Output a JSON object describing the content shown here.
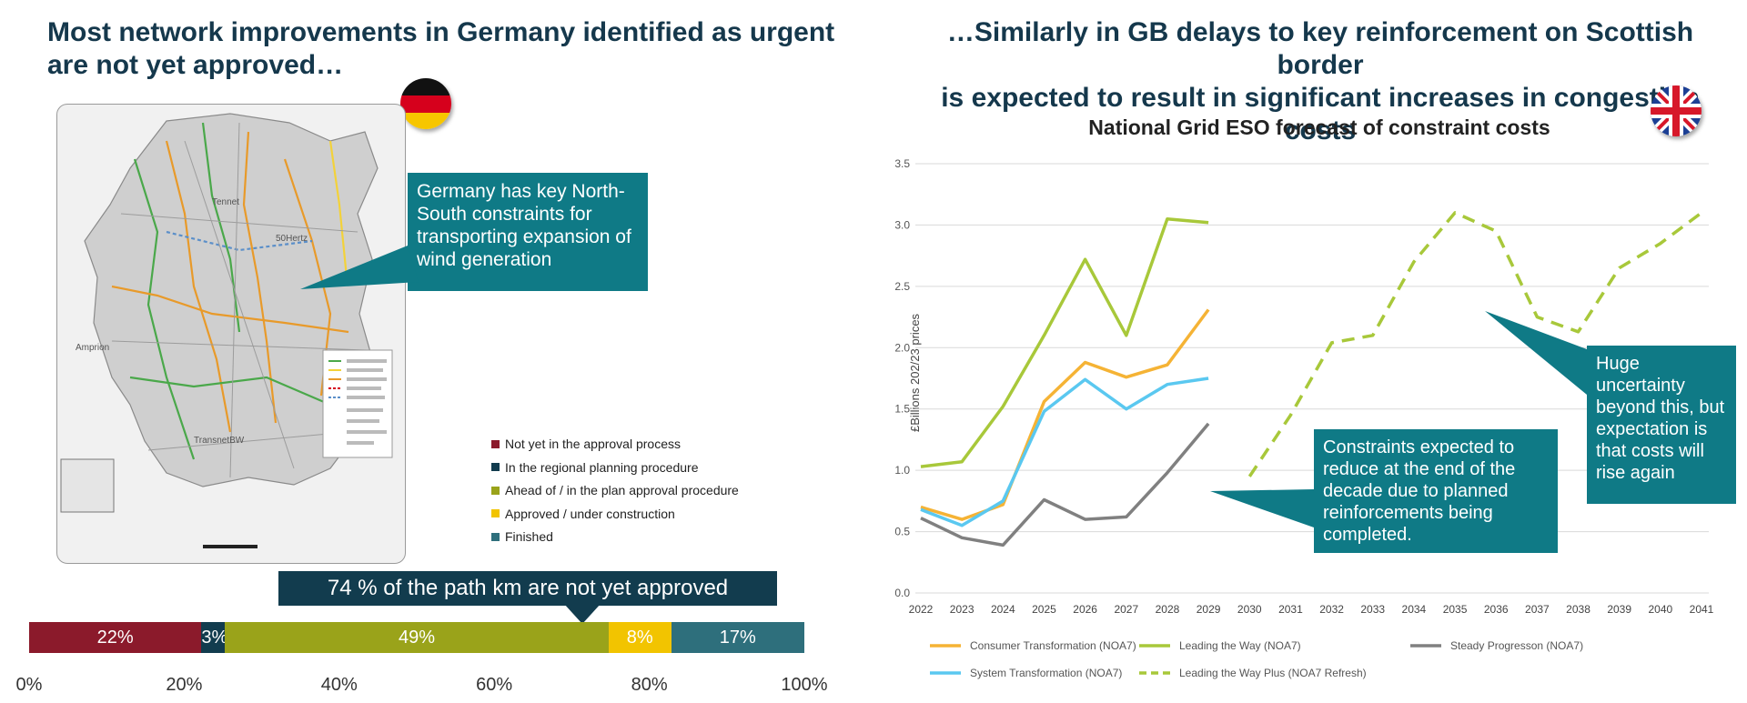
{
  "left": {
    "heading_line1": "Most network improvements in Germany identified as urgent",
    "heading_line2": "are not yet approved…",
    "callout": "Germany has key North-South constraints for transporting expansion of wind generation",
    "banner": "74 % of the path km are not yet approved",
    "status_legend": [
      {
        "label": "Not yet in the approval process",
        "color": "#8b1a2b"
      },
      {
        "label": "In the regional planning procedure",
        "color": "#123c4e"
      },
      {
        "label": "Ahead of / in the plan approval procedure",
        "color": "#9aa31a"
      },
      {
        "label": "Approved / under construction",
        "color": "#f2c400"
      },
      {
        "label": "Finished",
        "color": "#2e6f7c"
      }
    ],
    "map_labels": {
      "region_east": "50Hertz",
      "region_center": "Tennet",
      "region_west": "Amprion",
      "region_south": "TransnetBW"
    }
  },
  "right": {
    "heading_line1": "…Similarly in GB delays to key reinforcement on Scottish border",
    "heading_line2": "is expected to result in significant increases in congestion costs",
    "callout_constraints": "Constraints expected to reduce at the end of the decade due to planned reinforcements being completed.",
    "callout_uncertainty": "Huge uncertainty beyond this, but expectation is that costs will rise again"
  },
  "chart_data": [
    {
      "type": "bar",
      "stacked": true,
      "orientation": "horizontal",
      "segments": [
        {
          "label": "22%",
          "value": 22,
          "color": "#8b1a2b"
        },
        {
          "label": "3%",
          "value": 3,
          "color": "#123c4e"
        },
        {
          "label": "49%",
          "value": 49,
          "color": "#9aa31a"
        },
        {
          "label": "8%",
          "value": 8,
          "color": "#f2c400"
        },
        {
          "label": "17%",
          "value": 17,
          "color": "#2e6f7c"
        }
      ],
      "xticks": [
        "0%",
        "20%",
        "40%",
        "60%",
        "80%",
        "100%"
      ],
      "xlim": [
        0,
        100
      ]
    },
    {
      "type": "line",
      "title": "National Grid ESO forecast of constraint costs",
      "ylabel": "£Billions 202/23 prices",
      "x": [
        "2022",
        "2023",
        "2024",
        "2025",
        "2026",
        "2027",
        "2028",
        "2029",
        "2030",
        "2031",
        "2032",
        "2033",
        "2034",
        "2035",
        "2036",
        "2037",
        "2038",
        "2039",
        "2040",
        "2041"
      ],
      "ylim": [
        0,
        3.5
      ],
      "yticks": [
        "0.0",
        "0.5",
        "1.0",
        "1.5",
        "2.0",
        "2.5",
        "3.0",
        "3.5"
      ],
      "grid": true,
      "legend_position": "bottom",
      "series": [
        {
          "name": "Consumer Transformation (NOA7)",
          "color": "#f5b335",
          "dashed": false,
          "values": [
            0.7,
            0.6,
            0.72,
            1.56,
            1.88,
            1.76,
            1.86,
            2.31,
            null,
            null,
            null,
            null,
            null,
            null,
            null,
            null,
            null,
            null,
            null,
            null
          ]
        },
        {
          "name": "Leading the Way (NOA7)",
          "color": "#a8c83a",
          "dashed": false,
          "values": [
            1.03,
            1.07,
            1.52,
            2.1,
            2.72,
            2.1,
            3.05,
            3.02,
            null,
            null,
            null,
            null,
            null,
            null,
            null,
            null,
            null,
            null,
            null,
            null
          ]
        },
        {
          "name": "Steady Progresson (NOA7)",
          "color": "#808080",
          "dashed": false,
          "values": [
            0.61,
            0.45,
            0.39,
            0.76,
            0.6,
            0.62,
            0.98,
            1.38,
            null,
            null,
            null,
            null,
            null,
            null,
            null,
            null,
            null,
            null,
            null,
            null
          ]
        },
        {
          "name": "System Transformation (NOA7)",
          "color": "#5ac8f0",
          "dashed": false,
          "values": [
            0.68,
            0.55,
            0.75,
            1.48,
            1.74,
            1.5,
            1.7,
            1.75,
            null,
            null,
            null,
            null,
            null,
            null,
            null,
            null,
            null,
            null,
            null,
            null
          ]
        },
        {
          "name": "Leading the Way Plus (NOA7 Refresh)",
          "color": "#a8c83a",
          "dashed": true,
          "values": [
            null,
            null,
            null,
            null,
            null,
            null,
            null,
            null,
            0.95,
            1.45,
            2.04,
            2.1,
            2.7,
            3.1,
            2.95,
            2.25,
            2.13,
            2.65,
            2.85,
            3.1
          ]
        }
      ]
    }
  ]
}
